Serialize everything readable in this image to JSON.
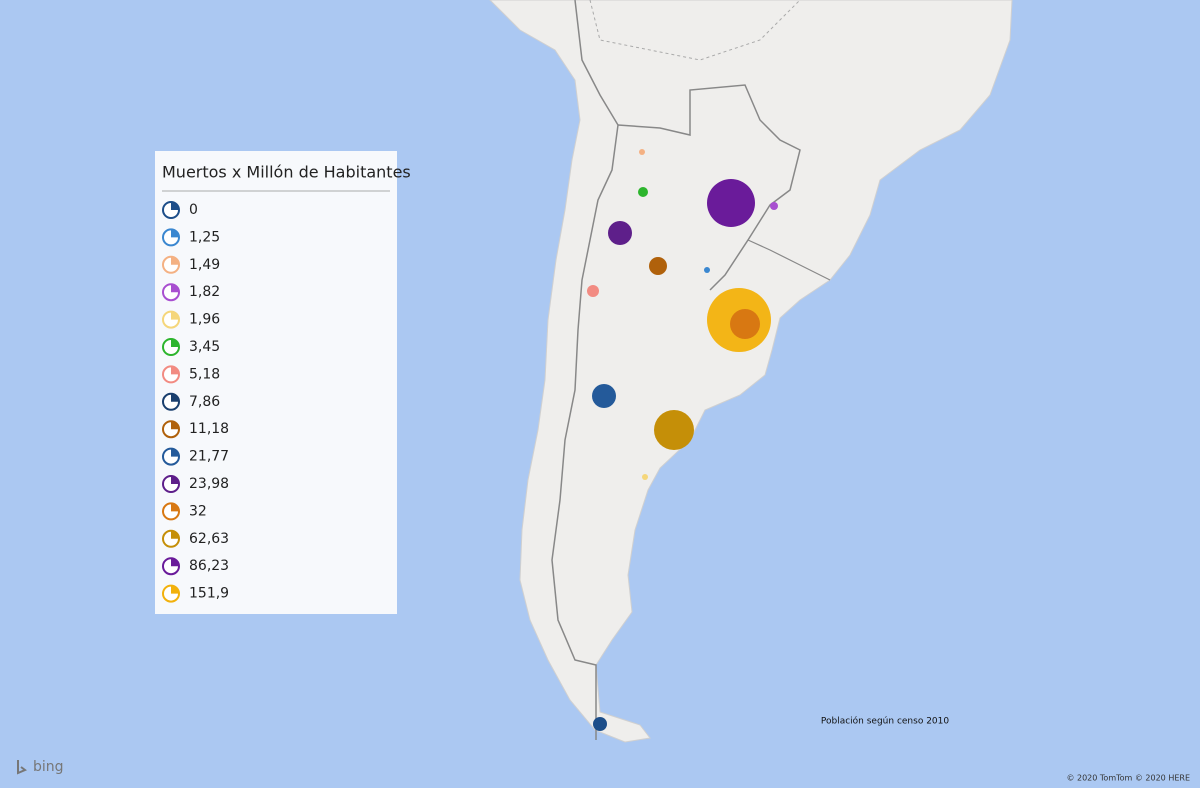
{
  "legend": {
    "title": "Muertos x Millón de Habitantes",
    "items": [
      {
        "value": 0,
        "label": "0",
        "color": "#1d4e89"
      },
      {
        "value": 1.25,
        "label": "1,25",
        "color": "#3a87d0"
      },
      {
        "value": 1.49,
        "label": "1,49",
        "color": "#f4b183"
      },
      {
        "value": 1.82,
        "label": "1,82",
        "color": "#a84fd0"
      },
      {
        "value": 1.96,
        "label": "1,96",
        "color": "#f5d67a"
      },
      {
        "value": 3.45,
        "label": "3,45",
        "color": "#2db52d"
      },
      {
        "value": 5.18,
        "label": "5,18",
        "color": "#f28b82"
      },
      {
        "value": 7.86,
        "label": "7,86",
        "color": "#1a3f6e"
      },
      {
        "value": 11.18,
        "label": "11,18",
        "color": "#b0610b"
      },
      {
        "value": 21.77,
        "label": "21,77",
        "color": "#245a9a"
      },
      {
        "value": 23.98,
        "label": "23,98",
        "color": "#5e1f8a"
      },
      {
        "value": 32,
        "label": "32",
        "color": "#d87812"
      },
      {
        "value": 62.63,
        "label": "62,63",
        "color": "#c58f08"
      },
      {
        "value": 86.23,
        "label": "86,23",
        "color": "#6a1b9a"
      },
      {
        "value": 151.9,
        "label": "151,9",
        "color": "#f2b10c"
      }
    ]
  },
  "note": "Población según censo 2010",
  "provider": "bing",
  "copyright": "© 2020 TomTom © 2020 HERE"
}
